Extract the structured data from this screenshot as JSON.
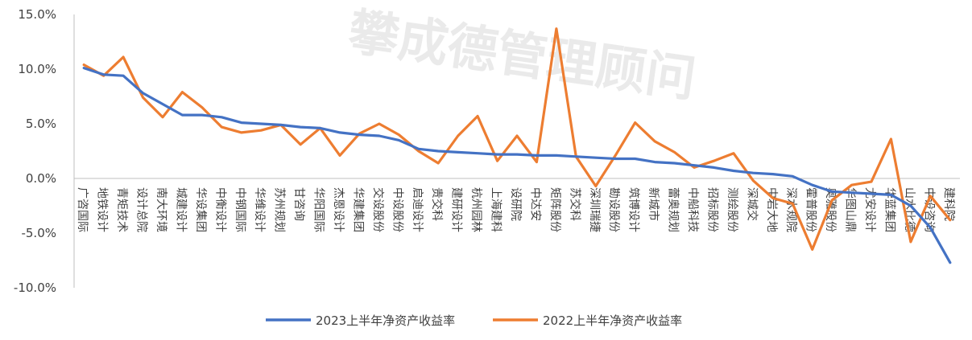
{
  "watermark": "攀成德管理顾问",
  "chart_data": {
    "type": "line",
    "categories": [
      "广咨国际",
      "地铁设计",
      "青矩技术",
      "设计总院",
      "南大环境",
      "城建设计",
      "华设集团",
      "中衡设计",
      "中钢国际",
      "华维设计",
      "苏州规划",
      "甘咨询",
      "华阳国际",
      "杰恩设计",
      "华建集团",
      "交设股份",
      "中设股份",
      "启迪设计",
      "贵交科",
      "建研设计",
      "杭州园林",
      "上海建科",
      "设研院",
      "中达安",
      "矩阵股份",
      "苏交科",
      "深圳瑞捷",
      "勘设股份",
      "筑博设计",
      "新城市",
      "蕾奥规划",
      "中船科技",
      "招标股份",
      "测绘股份",
      "深城交",
      "中岩大地",
      "深水规院",
      "霍普股份",
      "奥雅股份",
      "华图山鼎",
      "尤安设计",
      "华蓝集团",
      "山水比德",
      "中设咨询",
      "建科院"
    ],
    "series": [
      {
        "name": "2023上半年净资产收益率",
        "color": "#4472C4",
        "values": [
          10.1,
          9.5,
          9.4,
          7.8,
          6.8,
          5.8,
          5.8,
          5.6,
          5.1,
          5.0,
          4.9,
          4.7,
          4.6,
          4.2,
          4.0,
          3.9,
          3.5,
          2.7,
          2.5,
          2.4,
          2.3,
          2.2,
          2.2,
          2.1,
          2.1,
          2.0,
          1.9,
          1.8,
          1.8,
          1.5,
          1.4,
          1.2,
          1.0,
          0.7,
          0.5,
          0.4,
          0.2,
          -0.6,
          -1.2,
          -1.3,
          -1.4,
          -1.5,
          -2.5,
          -4.5,
          -7.7
        ]
      },
      {
        "name": "2022上半年净资产收益率",
        "color": "#ED7D31",
        "values": [
          10.4,
          9.4,
          11.1,
          7.4,
          5.6,
          7.9,
          6.5,
          4.7,
          4.2,
          4.4,
          4.9,
          3.1,
          4.6,
          2.1,
          4.1,
          5.0,
          4.0,
          2.5,
          1.4,
          3.9,
          5.7,
          1.6,
          3.9,
          1.5,
          13.7,
          2.0,
          -0.7,
          2.1,
          5.1,
          3.4,
          2.4,
          1.0,
          1.6,
          2.3,
          -0.2,
          -1.8,
          -2.3,
          -6.5,
          -2.0,
          -0.6,
          -0.3,
          3.6,
          -5.8,
          -1.6,
          -3.8
        ]
      }
    ],
    "y_ticks": [
      "15.0%",
      "10.0%",
      "5.0%",
      "0.0%",
      "-5.0%",
      "-10.0%"
    ],
    "ylim": [
      -10,
      15
    ],
    "y_unit": "%",
    "grid": false,
    "legend_position": "bottom"
  }
}
